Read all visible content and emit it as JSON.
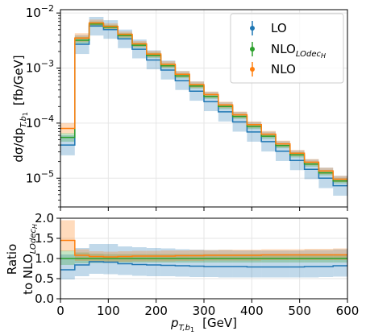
{
  "chart_data": [
    {
      "type": "line",
      "panel": "main",
      "xlabel": "p_{T,b_1}  [GeV]",
      "ylabel": "dσ/dp_{T,b_1}  [fb/GeV]",
      "ylabel_parts": {
        "main": "dσ/dp",
        "sub": "T,b",
        "subsub": "1",
        "unit": "[fb/GeV]"
      },
      "xlim": [
        0,
        600
      ],
      "ylim": [
        3e-06,
        0.0115
      ],
      "yscale": "log",
      "grid": true,
      "legend_position": "top-right",
      "bin_edges": [
        0,
        30,
        60,
        90,
        120,
        150,
        180,
        210,
        240,
        270,
        300,
        330,
        360,
        390,
        420,
        450,
        480,
        510,
        540,
        570,
        600
      ],
      "y_tick_labels": [
        {
          "value": 1e-05,
          "base": "10",
          "exp": "−5"
        },
        {
          "value": 0.0001,
          "base": "10",
          "exp": "−4"
        },
        {
          "value": 0.001,
          "base": "10",
          "exp": "−3"
        },
        {
          "value": 0.01,
          "base": "10",
          "exp": "−2"
        }
      ],
      "series": [
        {
          "name": "LO",
          "legend_main": "LO",
          "legend_sub": "",
          "color": "#1f77b4",
          "values": [
            4e-05,
            0.0027,
            0.0058,
            0.005,
            0.0034,
            0.0022,
            0.0014,
            0.00092,
            0.00059,
            0.00038,
            0.000245,
            0.00016,
            0.000105,
            6.9e-05,
            4.6e-05,
            3.1e-05,
            2.1e-05,
            1.45e-05,
            1e-05,
            7.3e-06
          ],
          "band_low": [
            2.6e-05,
            0.0018,
            0.0039,
            0.0034,
            0.0023,
            0.0015,
            0.00095,
            0.00062,
            0.0004,
            0.000255,
            0.000165,
            0.000107,
            7e-05,
            4.6e-05,
            3.05e-05,
            2.05e-05,
            1.4e-05,
            9.6e-06,
            6.6e-06,
            4.8e-06
          ],
          "band_high": [
            6e-05,
            0.004,
            0.0085,
            0.0074,
            0.005,
            0.0033,
            0.0021,
            0.00137,
            0.00088,
            0.00057,
            0.00037,
            0.00024,
            0.00016,
            0.000105,
            7e-05,
            4.7e-05,
            3.2e-05,
            2.2e-05,
            1.55e-05,
            1.1e-05
          ]
        },
        {
          "name": "NLO_LOdec_H",
          "legend_main": "NLO",
          "legend_sub": "LOdec",
          "legend_subsub": "H",
          "color": "#2ca02c",
          "values": [
            5.5e-05,
            0.0032,
            0.0063,
            0.0055,
            0.0039,
            0.0026,
            0.0017,
            0.0011,
            0.00072,
            0.00047,
            0.000305,
            0.0002,
            0.000132,
            8.7e-05,
            5.8e-05,
            3.9e-05,
            2.65e-05,
            1.8e-05,
            1.25e-05,
            8.9e-06
          ],
          "band_low": [
            4.6e-05,
            0.0028,
            0.0056,
            0.0049,
            0.0035,
            0.00235,
            0.00153,
            0.001,
            0.00065,
            0.000425,
            0.000275,
            0.00018,
            0.000119,
            7.8e-05,
            5.2e-05,
            3.5e-05,
            2.38e-05,
            1.62e-05,
            1.12e-05,
            8e-06
          ],
          "band_high": [
            6.6e-05,
            0.0037,
            0.007,
            0.0061,
            0.0043,
            0.0029,
            0.0019,
            0.00122,
            0.0008,
            0.00052,
            0.00034,
            0.00022,
            0.000146,
            9.6e-05,
            6.4e-05,
            4.3e-05,
            2.95e-05,
            2e-05,
            1.4e-05,
            9.9e-06
          ]
        },
        {
          "name": "NLO",
          "legend_main": "NLO",
          "legend_sub": "",
          "color": "#ff7f0e",
          "values": [
            8e-05,
            0.0035,
            0.0066,
            0.0057,
            0.0041,
            0.00275,
            0.0018,
            0.00117,
            0.00077,
            0.0005,
            0.00033,
            0.000215,
            0.000142,
            9.4e-05,
            6.3e-05,
            4.2e-05,
            2.85e-05,
            1.95e-05,
            1.35e-05,
            9.6e-06
          ],
          "band_low": [
            6.5e-05,
            0.003,
            0.0058,
            0.005,
            0.0036,
            0.00242,
            0.00158,
            0.00103,
            0.00068,
            0.00044,
            0.00029,
            0.00019,
            0.000125,
            8.3e-05,
            5.6e-05,
            3.7e-05,
            2.52e-05,
            1.72e-05,
            1.19e-05,
            8.5e-06
          ],
          "band_high": [
            0.0001,
            0.0043,
            0.0076,
            0.0065,
            0.0046,
            0.0031,
            0.00205,
            0.00133,
            0.00088,
            0.00057,
            0.000375,
            0.000245,
            0.000162,
            0.000107,
            7.2e-05,
            4.8e-05,
            3.25e-05,
            2.22e-05,
            1.55e-05,
            1.1e-05
          ]
        }
      ]
    },
    {
      "type": "line",
      "panel": "ratio",
      "xlabel": "p_{T,b_1}  [GeV]",
      "xlabel_parts": {
        "main": "p",
        "sub": "T,b",
        "subsub": "1",
        "unit": "[GeV]"
      },
      "ylabel": "Ratio to NLO_LOdec_H",
      "ylabel_parts": {
        "line1": "Ratio",
        "line2_main": "to NLO",
        "line2_sub": "LOdec",
        "line2_subsub": "H"
      },
      "xlim": [
        0,
        600
      ],
      "ylim": [
        0.0,
        2.0
      ],
      "yscale": "linear",
      "grid": true,
      "x_ticks": [
        0,
        100,
        200,
        300,
        400,
        500,
        600
      ],
      "x_tick_labels": [
        "0",
        "100",
        "200",
        "300",
        "400",
        "500",
        "600"
      ],
      "y_ticks": [
        0.0,
        0.5,
        1.0,
        1.5,
        2.0
      ],
      "y_tick_labels": [
        "0.0",
        "0.5",
        "1.0",
        "1.5",
        "2.0"
      ],
      "bin_edges": [
        0,
        30,
        60,
        90,
        120,
        150,
        180,
        210,
        240,
        270,
        300,
        330,
        360,
        390,
        420,
        450,
        480,
        510,
        540,
        570,
        600
      ],
      "series": [
        {
          "name": "LO",
          "color": "#1f77b4",
          "values": [
            0.72,
            0.84,
            0.92,
            0.91,
            0.87,
            0.85,
            0.84,
            0.83,
            0.82,
            0.81,
            0.8,
            0.8,
            0.8,
            0.79,
            0.79,
            0.79,
            0.79,
            0.8,
            0.8,
            0.82
          ],
          "band_low": [
            0.48,
            0.56,
            0.62,
            0.61,
            0.59,
            0.57,
            0.56,
            0.56,
            0.55,
            0.54,
            0.54,
            0.53,
            0.53,
            0.53,
            0.53,
            0.53,
            0.53,
            0.53,
            0.54,
            0.55
          ],
          "band_high": [
            1.1,
            1.26,
            1.36,
            1.36,
            1.3,
            1.28,
            1.26,
            1.25,
            1.23,
            1.22,
            1.21,
            1.21,
            1.2,
            1.2,
            1.2,
            1.2,
            1.2,
            1.21,
            1.21,
            1.23
          ]
        },
        {
          "name": "NLO_LOdec_H",
          "color": "#2ca02c",
          "values": [
            1.0,
            1.0,
            1.0,
            1.0,
            1.0,
            1.0,
            1.0,
            1.0,
            1.0,
            1.0,
            1.0,
            1.0,
            1.0,
            1.0,
            1.0,
            1.0,
            1.0,
            1.0,
            1.0,
            1.0
          ],
          "band_low": [
            0.84,
            0.88,
            0.89,
            0.89,
            0.9,
            0.9,
            0.9,
            0.9,
            0.9,
            0.9,
            0.9,
            0.9,
            0.9,
            0.9,
            0.9,
            0.9,
            0.9,
            0.9,
            0.9,
            0.9
          ],
          "band_high": [
            1.2,
            1.15,
            1.12,
            1.11,
            1.11,
            1.11,
            1.11,
            1.11,
            1.11,
            1.11,
            1.11,
            1.11,
            1.11,
            1.11,
            1.11,
            1.11,
            1.11,
            1.11,
            1.11,
            1.11
          ]
        },
        {
          "name": "NLO",
          "color": "#ff7f0e",
          "values": [
            1.45,
            1.08,
            1.05,
            1.04,
            1.05,
            1.06,
            1.06,
            1.06,
            1.07,
            1.07,
            1.08,
            1.08,
            1.08,
            1.08,
            1.09,
            1.09,
            1.09,
            1.09,
            1.09,
            1.09
          ],
          "band_low": [
            1.18,
            0.94,
            0.92,
            0.91,
            0.92,
            0.93,
            0.93,
            0.93,
            0.94,
            0.94,
            0.95,
            0.95,
            0.95,
            0.95,
            0.96,
            0.96,
            0.96,
            0.96,
            0.96,
            0.96
          ],
          "band_high": [
            1.95,
            1.23,
            1.18,
            1.17,
            1.18,
            1.19,
            1.19,
            1.2,
            1.2,
            1.21,
            1.21,
            1.22,
            1.22,
            1.22,
            1.23,
            1.23,
            1.23,
            1.24,
            1.24,
            1.25
          ]
        }
      ]
    }
  ]
}
